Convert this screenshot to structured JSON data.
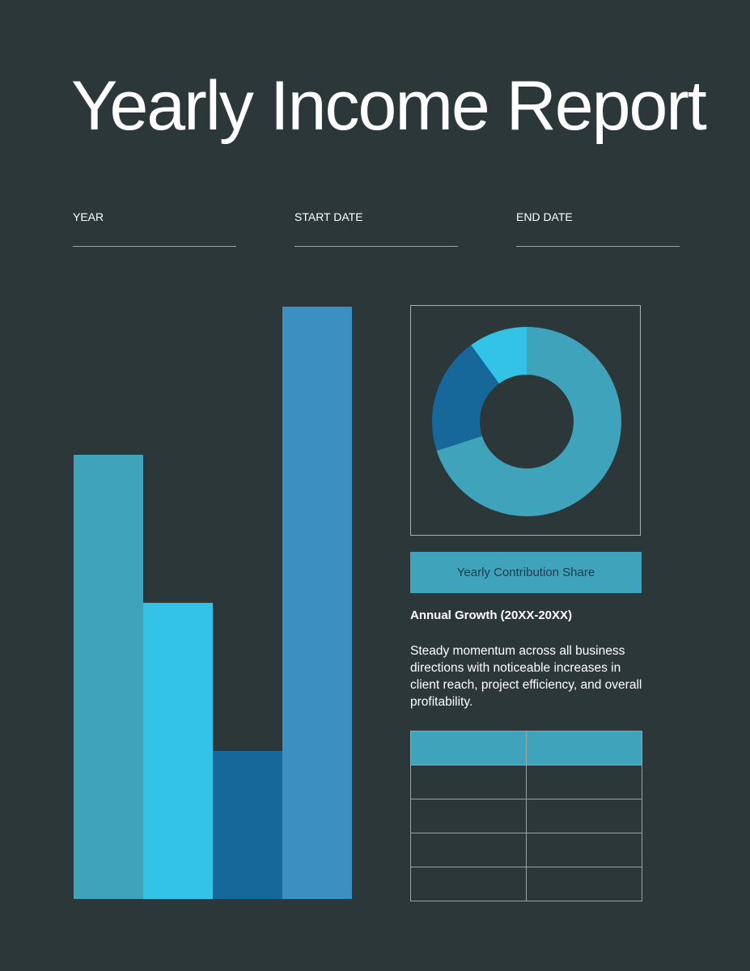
{
  "title": "Yearly Income Report",
  "fields": [
    {
      "label": "YEAR",
      "value": ""
    },
    {
      "label": "START DATE",
      "value": ""
    },
    {
      "label": "END DATE",
      "value": ""
    }
  ],
  "chart_data": [
    {
      "type": "bar",
      "categories": [
        "",
        "",
        "",
        ""
      ],
      "values": [
        3,
        2,
        1,
        4
      ],
      "colors": [
        "#3fa3bb",
        "#33c3e6",
        "#16689b",
        "#3c90c1"
      ],
      "grid": false
    },
    {
      "type": "pie",
      "variant": "donut",
      "values": [
        70,
        20,
        10
      ],
      "colors": [
        "#3fa3bb",
        "#16689b",
        "#33c3e6"
      ],
      "title": "Yearly Contribution Share"
    }
  ],
  "growth": {
    "heading": "Annual Growth (20XX-20XX)",
    "body": "Steady momentum across all business directions with noticeable increases in client reach, project efficiency, and overall profitability."
  },
  "table": {
    "headers": [
      "",
      ""
    ],
    "rows": [
      [
        "",
        ""
      ],
      [
        "",
        ""
      ],
      [
        "",
        ""
      ],
      [
        "",
        ""
      ]
    ]
  },
  "colors": {
    "background": "#2c373a",
    "accent": "#3fa3bb"
  }
}
